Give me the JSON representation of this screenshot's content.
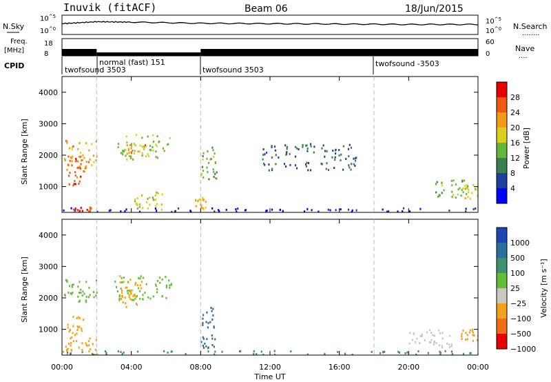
{
  "header": {
    "station": "Inuvik (fitACF)",
    "beam": "Beam 06",
    "date": "18/Jun/2015"
  },
  "strips": {
    "sky_label": "N.Sky",
    "search_label": "N.Search",
    "freq_label_line1": "Freq.",
    "freq_label_line2": "[MHz]",
    "nave_label": "Nave",
    "cpid_label": "CPID",
    "noise_ticks": [
      "10^5",
      "10^0"
    ],
    "freq_ticks": [
      "18",
      "8"
    ],
    "nave_ticks": [
      "60",
      "0"
    ],
    "cpid_segments": [
      {
        "label": "twofsound 3503",
        "start": "00:00",
        "end": "02:00"
      },
      {
        "label": "normal (fast) 151",
        "start": "02:00",
        "end": "08:00"
      },
      {
        "label": "twofsound 3503",
        "start": "08:00",
        "end": "18:00"
      },
      {
        "label": "twofsound -3503",
        "start": "18:00",
        "end": "24:00"
      }
    ]
  },
  "power_panel": {
    "ylabel": "Slant Range [km]",
    "yticks": [
      "1000",
      "2000",
      "3000",
      "4000"
    ],
    "colorbar_label": "Power [dB]",
    "colorbar_ticks": [
      "4",
      "8",
      "12",
      "16",
      "20",
      "24",
      "28"
    ],
    "colors": [
      "#0000ff",
      "#1f3f9f",
      "#3a7f4f",
      "#66b63e",
      "#d8cf1e",
      "#f49a1a",
      "#ef5a12",
      "#e60000"
    ]
  },
  "velocity_panel": {
    "ylabel": "Slant Range [km]",
    "yticks": [
      "1000",
      "2000",
      "3000",
      "4000"
    ],
    "colorbar_label": "Velocity [m s⁻¹]",
    "colorbar_ticks": [
      "1000",
      "500",
      "100",
      "25",
      "−25",
      "−100",
      "−500",
      "−1000"
    ],
    "colors": [
      "#1f46b4",
      "#2d6e9e",
      "#3e8f6f",
      "#63bd3a",
      "#c9c9c0",
      "#f1a21a",
      "#ef6f14",
      "#e60000"
    ]
  },
  "xaxis": {
    "ticks": [
      "00:00",
      "04:00",
      "08:00",
      "12:00",
      "16:00",
      "20:00",
      "00:00"
    ],
    "label": "Time UT"
  },
  "chart_data": [
    {
      "type": "line",
      "title": "N.Sky / N.Search",
      "x_range": [
        "00:00",
        "24:00"
      ],
      "ylim_log10": [
        0,
        5
      ],
      "series": [
        {
          "name": "N.Sky",
          "x_hours": [
            0,
            2,
            4,
            8,
            12,
            16,
            20,
            24
          ],
          "log10_values": [
            2.8,
            3.3,
            3.2,
            2.9,
            2.8,
            2.7,
            2.6,
            2.6
          ]
        }
      ]
    },
    {
      "type": "area",
      "title": "Freq. / Nave",
      "x_range": [
        "00:00",
        "24:00"
      ],
      "ylim": [
        8,
        18
      ],
      "series": [
        {
          "name": "Freq.",
          "x_hours": [
            0,
            2,
            8,
            24
          ],
          "values": [
            12,
            10,
            12,
            12
          ]
        }
      ]
    },
    {
      "type": "heatmap",
      "title": "Power [dB]",
      "x_range_hours": [
        0,
        24
      ],
      "y_range_km": [
        180,
        4500
      ],
      "blobs": [
        {
          "x0": 0.1,
          "x1": 2.0,
          "y0": 1500,
          "y1": 2500,
          "v": 22
        },
        {
          "x0": 0.3,
          "x1": 1.3,
          "y0": 1000,
          "y1": 1900,
          "v": 26
        },
        {
          "x0": 0.6,
          "x1": 1.7,
          "y0": 180,
          "y1": 330,
          "v": 28
        },
        {
          "x0": 3.2,
          "x1": 6.2,
          "y0": 1850,
          "y1": 2650,
          "v": 16
        },
        {
          "x0": 3.7,
          "x1": 4.8,
          "y0": 1950,
          "y1": 2400,
          "v": 22
        },
        {
          "x0": 4.0,
          "x1": 5.8,
          "y0": 250,
          "y1": 800,
          "v": 18
        },
        {
          "x0": 8.0,
          "x1": 8.9,
          "y0": 1150,
          "y1": 2250,
          "v": 14
        },
        {
          "x0": 7.6,
          "x1": 8.3,
          "y0": 250,
          "y1": 650,
          "v": 20
        },
        {
          "x0": 11.5,
          "x1": 17.0,
          "y0": 1500,
          "y1": 2350,
          "v": 8
        },
        {
          "x0": 21.5,
          "x1": 23.5,
          "y0": 600,
          "y1": 1200,
          "v": 14
        },
        {
          "x0": 23.2,
          "x1": 24.0,
          "y0": 600,
          "y1": 1100,
          "v": 18
        },
        {
          "x0": 0.0,
          "x1": 24.0,
          "y0": 180,
          "y1": 300,
          "v": 4
        }
      ]
    },
    {
      "type": "heatmap",
      "title": "Velocity [m s⁻¹]",
      "x_range_hours": [
        0,
        24
      ],
      "y_range_km": [
        180,
        4500
      ],
      "blobs": [
        {
          "x0": 0.1,
          "x1": 2.0,
          "y0": 1800,
          "y1": 2600,
          "v": 0
        },
        {
          "x0": 3.0,
          "x1": 6.3,
          "y0": 1900,
          "y1": 2700,
          "v": 0
        },
        {
          "x0": 0.3,
          "x1": 1.2,
          "y0": 700,
          "y1": 1400,
          "v": -300
        },
        {
          "x0": 3.3,
          "x1": 4.6,
          "y0": 1700,
          "y1": 2700,
          "v": -200
        },
        {
          "x0": 0.0,
          "x1": 2.0,
          "y0": 180,
          "y1": 700,
          "v": -150
        },
        {
          "x0": 8.0,
          "x1": 8.8,
          "y0": 300,
          "y1": 1700,
          "v": 200
        },
        {
          "x0": 20.0,
          "x1": 22.5,
          "y0": 400,
          "y1": 1000,
          "v": -60
        },
        {
          "x0": 23.0,
          "x1": 24.0,
          "y0": 600,
          "y1": 1000,
          "v": -300
        },
        {
          "x0": 0.0,
          "x1": 24.0,
          "y0": 180,
          "y1": 300,
          "v": 50
        }
      ]
    }
  ]
}
